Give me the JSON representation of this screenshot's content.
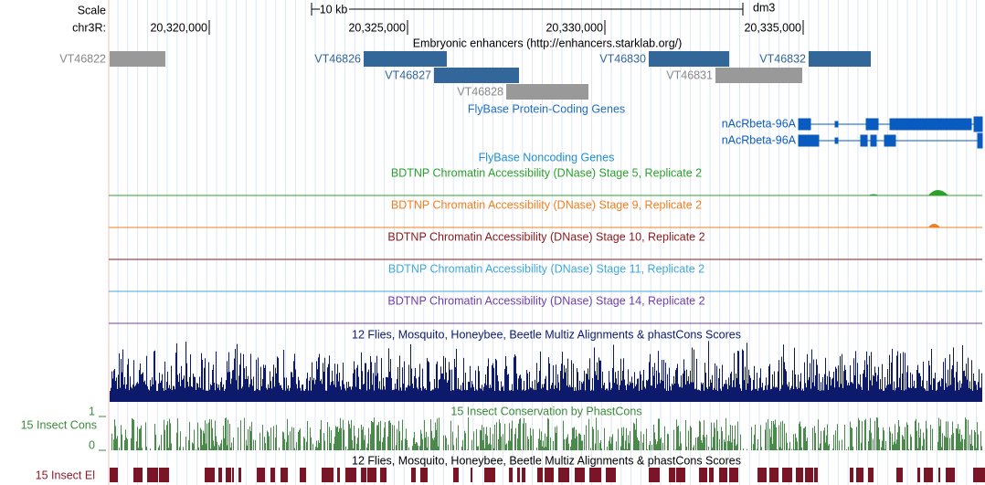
{
  "ruler": {
    "scale_label": "Scale",
    "scale_bar": "10 kb",
    "assembly": "dm3",
    "chrom_label": "chr3R:",
    "ticks": [
      "20,320,000",
      "20,325,000",
      "20,330,000",
      "20,335,000"
    ]
  },
  "enhancers": {
    "title": "Embryonic enhancers (http://enhancers.starklab.org/)",
    "items": [
      "VT46822",
      "VT46826",
      "VT46827",
      "VT46828",
      "VT46830",
      "VT46831",
      "VT46832"
    ]
  },
  "protein_genes": {
    "title": "FlyBase Protein-Coding Genes",
    "genes": [
      "nAcRbeta-96A",
      "nAcRbeta-96A"
    ]
  },
  "noncoding_genes": {
    "title": "FlyBase Noncoding Genes"
  },
  "dnase_tracks": [
    "BDTNP Chromatin Accessibility (DNase) Stage 5, Replicate 2",
    "BDTNP Chromatin Accessibility (DNase) Stage 9, Replicate 2",
    "BDTNP Chromatin Accessibility (DNase) Stage 10, Replicate 2",
    "BDTNP Chromatin Accessibility (DNase) Stage 11, Replicate 2",
    "BDTNP Chromatin Accessibility (DNase) Stage 14, Replicate 2"
  ],
  "multiz": {
    "title": "12 Flies, Mosquito, Honeybee, Beetle Multiz Alignments & phastCons Scores"
  },
  "phastcons": {
    "title": "15 Insect Conservation by PhastCons",
    "label": "15 Insect Cons",
    "max": "1",
    "min": "0"
  },
  "elements": {
    "title": "12 Flies, Mosquito, Honeybee, Beetle Multiz Alignments & phastCons Scores",
    "label": "15 Insect El"
  }
}
